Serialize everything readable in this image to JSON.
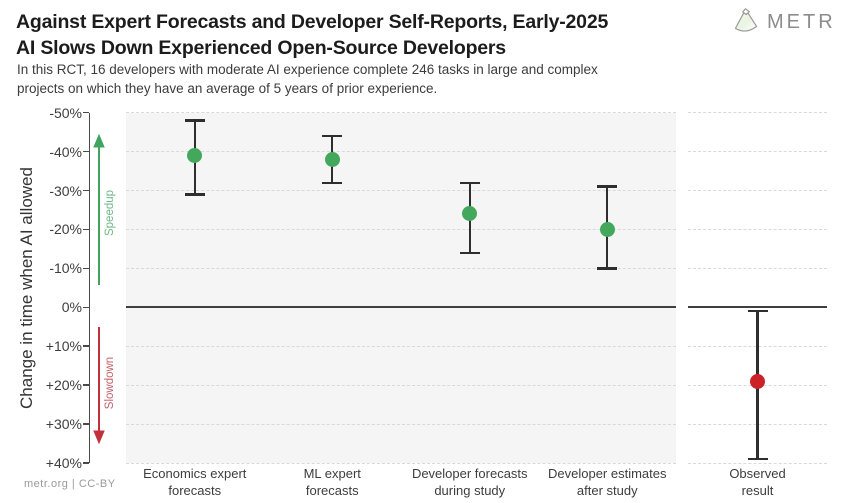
{
  "header": {
    "title_line1": "Against Expert Forecasts and Developer Self-Reports, Early-2025",
    "title_line2": "AI Slows Down Experienced Open-Source Developers",
    "subtitle_line1": "In this RCT, 16 developers with moderate AI experience complete 246 tasks in large and complex",
    "subtitle_line2": "projects on which they have an average of 5 years of prior experience.",
    "logo_text": "METR",
    "logo_icon": "metr-gem-icon"
  },
  "footer": {
    "credit": "metr.org | CC-BY"
  },
  "colors": {
    "point_green": "#43a85c",
    "point_red": "#cd2128",
    "arrow_green": "#3fa45f",
    "arrow_red": "#c2303c",
    "speedup_text": "#6fb988",
    "slowdown_text": "#c7616a",
    "panel_gray": "#f5f5f5",
    "grid": "#d9d9d9",
    "axis": "#4a4a4a",
    "axis_dark": "#3f3f3f",
    "whisker": "#2e2e2e"
  },
  "chart_data": {
    "type": "scatter",
    "subtype": "point-estimates-with-95ci-error-bars",
    "title": "Against Expert Forecasts and Developer Self-Reports, Early-2025 AI Slows Down Experienced Open-Source Developers",
    "ylabel": "Change in time when AI allowed",
    "xlabel": "",
    "y_axis": {
      "tick_values": [
        -50,
        -40,
        -30,
        -20,
        -10,
        0,
        10,
        20,
        30,
        40
      ],
      "tick_labels": [
        "-50%",
        "-40%",
        "-30%",
        "-20%",
        "-10%",
        "0%",
        "+10%",
        "+20%",
        "+30%",
        "+40%"
      ],
      "range": [
        -50,
        40
      ],
      "inverted": true,
      "grid": "dashed horizontal gridline at each tick; solid dark line at 0%"
    },
    "annotations": {
      "speedup": {
        "label": "Speedup",
        "direction": "up",
        "region": "above 0%"
      },
      "slowdown": {
        "label": "Slowdown",
        "direction": "down",
        "region": "below 0%"
      }
    },
    "panels": [
      {
        "name": "forecasts-panel",
        "background": "#f5f5f5",
        "points": [
          {
            "category_line1": "Economics expert",
            "category_line2": "forecasts",
            "value": -39,
            "ci_low": -48,
            "ci_high": -29,
            "color_key": "point_green"
          },
          {
            "category_line1": "ML expert",
            "category_line2": "forecasts",
            "value": -38,
            "ci_low": -44,
            "ci_high": -32,
            "color_key": "point_green"
          },
          {
            "category_line1": "Developer forecasts",
            "category_line2": "during study",
            "value": -24,
            "ci_low": -32,
            "ci_high": -14,
            "color_key": "point_green"
          },
          {
            "category_line1": "Developer estimates",
            "category_line2": "after study",
            "value": -20,
            "ci_low": -31,
            "ci_high": -10,
            "color_key": "point_green"
          }
        ]
      },
      {
        "name": "observed-panel",
        "background": "#ffffff",
        "points": [
          {
            "category_line1": "Observed",
            "category_line2": "result",
            "value": 19,
            "ci_low": 1,
            "ci_high": 39,
            "color_key": "point_red"
          }
        ]
      }
    ]
  }
}
